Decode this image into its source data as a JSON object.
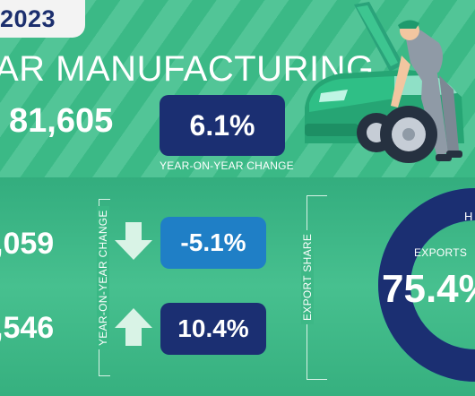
{
  "header": {
    "year": "2023",
    "title": "AR MANUFACTURING",
    "total_units": "81,605",
    "yoy_change": "6.1%",
    "yoy_label": "YEAR-ON-YEAR CHANGE"
  },
  "breakdown": {
    "side_label": "YEAR-ON-YEAR CHANGE",
    "rows": [
      {
        "number": ",059",
        "change": "-5.1%",
        "direction": "down"
      },
      {
        "number": ",546",
        "change": "10.4%",
        "direction": "up"
      }
    ]
  },
  "export": {
    "side_label": "EXPORT SHARE",
    "label": "EXPORTS",
    "value": "75.4%",
    "home_label": "H",
    "share": 75.4
  },
  "colors": {
    "navy": "#1b2f72",
    "blue": "#1f7fc6",
    "green": "#3bb986",
    "white": "#ffffff"
  },
  "icons": [
    "arrow-down-icon",
    "arrow-up-icon",
    "car-mechanic-illustration"
  ]
}
